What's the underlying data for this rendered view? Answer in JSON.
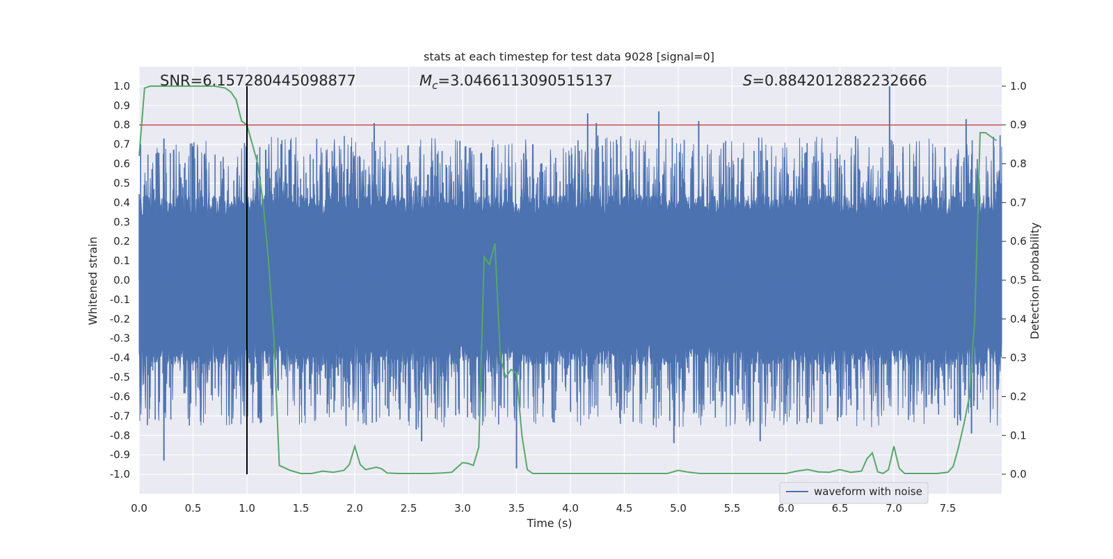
{
  "chart_data": {
    "type": "line",
    "title": "stats at each timestep for test data 9028 [signal=0]",
    "xlabel": "Time (s)",
    "ylabel": "Whitened strain",
    "y2label": "Detection probability",
    "xlim": [
      0.0,
      8.0
    ],
    "ylim": [
      -1.1,
      1.1
    ],
    "y2lim": [
      -0.05,
      1.05
    ],
    "xticks": [
      "0.0",
      "0.5",
      "1.0",
      "1.5",
      "2.0",
      "2.5",
      "3.0",
      "3.5",
      "4.0",
      "4.5",
      "5.0",
      "5.5",
      "6.0",
      "6.5",
      "7.0",
      "7.5"
    ],
    "yticks": [
      "1.0",
      "0.9",
      "0.8",
      "0.7",
      "0.6",
      "0.5",
      "0.4",
      "0.3",
      "0.2",
      "0.1",
      "0.0",
      "-0.1",
      "-0.2",
      "-0.3",
      "-0.4",
      "-0.5",
      "-0.6",
      "-0.7",
      "-0.8",
      "-0.9",
      "-1.0"
    ],
    "y2ticks": [
      "1.0",
      "0.9",
      "0.8",
      "0.7",
      "0.6",
      "0.5",
      "0.4",
      "0.3",
      "0.2",
      "0.1",
      "0.0"
    ],
    "grid": true,
    "legend": {
      "placement": "lower-right",
      "entries": [
        "waveform with noise"
      ]
    },
    "annotations": {
      "snr": "SNR=6.157280445098877",
      "mc_symbol": "M",
      "mc_sub": "c",
      "mc_value": "=3.0466113090515137",
      "s_symbol": "S",
      "s_value": "=0.8842012882232666"
    },
    "threshold_line": {
      "y2": 0.9,
      "color": "#c44e52"
    },
    "marker_line": {
      "x": 1.0,
      "color": "#000000"
    },
    "waveform": {
      "name": "waveform with noise",
      "color": "#4c72b0",
      "x_range": [
        0.0,
        8.0
      ],
      "typical_amplitude": 0.38,
      "spikes": [
        {
          "x": 0.23,
          "y": 0.73
        },
        {
          "x": 0.23,
          "y": -0.93
        },
        {
          "x": 0.5,
          "y": 0.69
        },
        {
          "x": 2.18,
          "y": 0.81
        },
        {
          "x": 2.57,
          "y": -0.77
        },
        {
          "x": 2.62,
          "y": -0.83
        },
        {
          "x": 3.5,
          "y": -0.97
        },
        {
          "x": 4.16,
          "y": 0.86
        },
        {
          "x": 4.24,
          "y": 0.81
        },
        {
          "x": 4.82,
          "y": 0.87
        },
        {
          "x": 4.96,
          "y": -0.84
        },
        {
          "x": 5.19,
          "y": 0.82
        },
        {
          "x": 5.76,
          "y": -0.83
        },
        {
          "x": 6.96,
          "y": 1.0
        },
        {
          "x": 7.67,
          "y": 0.83
        },
        {
          "x": 7.72,
          "y": -0.79
        }
      ]
    },
    "probability": {
      "name": "Detection probability",
      "color": "#55a868",
      "x": [
        0.0,
        0.05,
        0.1,
        0.2,
        0.3,
        0.4,
        0.5,
        0.6,
        0.7,
        0.8,
        0.85,
        0.9,
        0.95,
        1.0,
        1.05,
        1.1,
        1.15,
        1.2,
        1.25,
        1.3,
        1.4,
        1.5,
        1.6,
        1.7,
        1.8,
        1.9,
        1.95,
        2.0,
        2.05,
        2.1,
        2.2,
        2.25,
        2.3,
        2.4,
        2.5,
        2.6,
        2.7,
        2.8,
        2.9,
        3.0,
        3.05,
        3.1,
        3.15,
        3.2,
        3.25,
        3.3,
        3.35,
        3.4,
        3.45,
        3.5,
        3.55,
        3.6,
        3.65,
        3.7,
        3.8,
        4.0,
        4.5,
        4.9,
        5.0,
        5.1,
        5.2,
        5.5,
        6.0,
        6.1,
        6.2,
        6.3,
        6.4,
        6.5,
        6.6,
        6.7,
        6.75,
        6.8,
        6.85,
        6.9,
        6.95,
        7.0,
        7.05,
        7.1,
        7.15,
        7.2,
        7.3,
        7.4,
        7.5,
        7.55,
        7.6,
        7.65,
        7.7,
        7.75,
        7.8,
        7.85,
        7.9,
        7.95
      ],
      "y": [
        0.82,
        0.995,
        1.0,
        1.0,
        1.0,
        1.0,
        1.0,
        1.0,
        1.0,
        0.995,
        0.985,
        0.965,
        0.91,
        0.9,
        0.85,
        0.8,
        0.7,
        0.55,
        0.35,
        0.023,
        0.01,
        0.002,
        0.002,
        0.008,
        0.005,
        0.01,
        0.025,
        0.072,
        0.025,
        0.012,
        0.018,
        0.014,
        0.003,
        0.002,
        0.002,
        0.002,
        0.002,
        0.003,
        0.005,
        0.03,
        0.028,
        0.023,
        0.07,
        0.56,
        0.54,
        0.595,
        0.3,
        0.25,
        0.27,
        0.26,
        0.1,
        0.012,
        0.002,
        0.002,
        0.002,
        0.002,
        0.002,
        0.002,
        0.01,
        0.005,
        0.002,
        0.002,
        0.002,
        0.008,
        0.012,
        0.006,
        0.005,
        0.012,
        0.005,
        0.008,
        0.04,
        0.055,
        0.006,
        0.002,
        0.012,
        0.072,
        0.015,
        0.002,
        0.002,
        0.002,
        0.002,
        0.002,
        0.005,
        0.02,
        0.07,
        0.13,
        0.2,
        0.4,
        0.88,
        0.88,
        0.87,
        0.86
      ]
    }
  }
}
